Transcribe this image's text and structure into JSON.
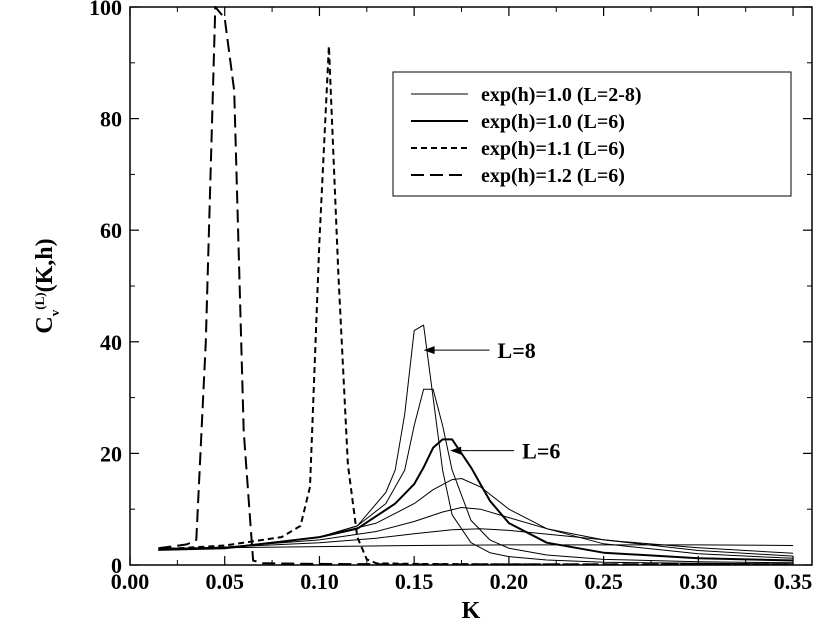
{
  "chart_data": {
    "type": "line",
    "title": "",
    "xlabel": "K",
    "ylabel": {
      "base": "C",
      "sub": "v",
      "sup": "(L)",
      "arg": "(K,h)"
    },
    "xlim": [
      0.0,
      0.36
    ],
    "ylim": [
      0,
      100
    ],
    "xticks": [
      0.0,
      0.05,
      0.1,
      0.15,
      0.2,
      0.25,
      0.3,
      0.35
    ],
    "xtick_labels": [
      "0.00",
      "0.05",
      "0.10",
      "0.15",
      "0.20",
      "0.25",
      "0.30",
      "0.35"
    ],
    "yticks": [
      0,
      20,
      40,
      60,
      80,
      100
    ],
    "ytick_labels": [
      "0",
      "20",
      "40",
      "60",
      "80",
      "100"
    ],
    "grid": false,
    "legend_position": "top-right",
    "legend": [
      {
        "label": "exp(h)=1.0 (L=2-8)",
        "style": "thin"
      },
      {
        "label": "exp(h)=1.0 (L=6)",
        "style": "thick"
      },
      {
        "label": "exp(h)=1.1 (L=6)",
        "style": "short-dash"
      },
      {
        "label": "exp(h)=1.2 (L=6)",
        "style": "long-dash"
      }
    ],
    "series": [
      {
        "style": "thin",
        "x": [
          0.015,
          0.05,
          0.1,
          0.15,
          0.2,
          0.25,
          0.3,
          0.35
        ],
        "y": [
          3.0,
          3.1,
          3.3,
          3.5,
          3.6,
          3.6,
          3.6,
          3.5
        ]
      },
      {
        "style": "thin",
        "x": [
          0.015,
          0.05,
          0.1,
          0.13,
          0.15,
          0.17,
          0.185,
          0.2,
          0.23,
          0.26,
          0.3,
          0.35
        ],
        "y": [
          2.9,
          3.2,
          4.0,
          4.8,
          5.6,
          6.3,
          6.5,
          6.2,
          5.2,
          4.2,
          3.1,
          2.1
        ]
      },
      {
        "style": "thin",
        "x": [
          0.015,
          0.05,
          0.1,
          0.13,
          0.15,
          0.165,
          0.175,
          0.185,
          0.2,
          0.22,
          0.25,
          0.3,
          0.35
        ],
        "y": [
          2.8,
          3.2,
          4.5,
          6.0,
          7.8,
          9.5,
          10.3,
          10.0,
          8.5,
          6.5,
          4.5,
          2.6,
          1.6
        ]
      },
      {
        "style": "thin",
        "x": [
          0.015,
          0.05,
          0.1,
          0.13,
          0.15,
          0.16,
          0.17,
          0.175,
          0.185,
          0.2,
          0.22,
          0.25,
          0.3,
          0.35
        ],
        "y": [
          2.7,
          3.1,
          5.0,
          7.5,
          11.0,
          13.5,
          15.3,
          15.5,
          14.0,
          10.0,
          6.5,
          3.8,
          2.0,
          1.2
        ]
      },
      {
        "style": "thin",
        "x": [
          0.015,
          0.05,
          0.1,
          0.12,
          0.14,
          0.15,
          0.155,
          0.16,
          0.165,
          0.17,
          0.18,
          0.19,
          0.2,
          0.22,
          0.25,
          0.3,
          0.35
        ],
        "y": [
          2.7,
          3.0,
          5.0,
          6.5,
          11.0,
          14.5,
          17.5,
          21.0,
          22.5,
          22.5,
          17.5,
          11.5,
          7.5,
          4.0,
          2.2,
          1.2,
          0.8
        ]
      },
      {
        "style": "thin",
        "x": [
          0.015,
          0.05,
          0.1,
          0.12,
          0.135,
          0.145,
          0.15,
          0.155,
          0.16,
          0.165,
          0.17,
          0.18,
          0.19,
          0.2,
          0.22,
          0.25,
          0.3,
          0.35
        ],
        "y": [
          2.7,
          3.0,
          5.0,
          7.0,
          11.0,
          17.0,
          25.0,
          31.5,
          31.5,
          25.0,
          17.0,
          8.0,
          4.5,
          3.0,
          1.8,
          1.0,
          0.6,
          0.4
        ]
      },
      {
        "style": "thin",
        "x": [
          0.015,
          0.05,
          0.1,
          0.12,
          0.135,
          0.14,
          0.145,
          0.15,
          0.155,
          0.16,
          0.165,
          0.17,
          0.18,
          0.19,
          0.2,
          0.22,
          0.25,
          0.3,
          0.35
        ],
        "y": [
          2.7,
          3.0,
          5.0,
          7.0,
          13.0,
          17.0,
          27.0,
          42.0,
          43.0,
          30.0,
          17.0,
          9.0,
          4.0,
          2.2,
          1.5,
          0.9,
          0.5,
          0.3,
          0.2
        ]
      },
      {
        "style": "thick",
        "x": [
          0.015,
          0.05,
          0.1,
          0.12,
          0.14,
          0.15,
          0.155,
          0.16,
          0.165,
          0.17,
          0.18,
          0.19,
          0.2,
          0.22,
          0.25,
          0.3,
          0.35
        ],
        "y": [
          2.7,
          3.0,
          5.0,
          6.5,
          11.0,
          14.5,
          17.5,
          21.0,
          22.5,
          22.5,
          17.5,
          11.5,
          7.5,
          4.0,
          2.2,
          1.2,
          0.8
        ]
      },
      {
        "style": "short-dash",
        "x": [
          0.015,
          0.05,
          0.08,
          0.09,
          0.095,
          0.1,
          0.105,
          0.11,
          0.115,
          0.12,
          0.125,
          0.13,
          0.15,
          0.2,
          0.25,
          0.3,
          0.35
        ],
        "y": [
          2.8,
          3.5,
          5.0,
          7.0,
          14.0,
          58.0,
          93.0,
          52.0,
          18.0,
          5.0,
          1.0,
          0.3,
          0.2,
          0.1,
          0.1,
          0.1,
          0.1
        ]
      },
      {
        "style": "long-dash",
        "x": [
          0.015,
          0.03,
          0.035,
          0.04,
          0.045,
          0.05,
          0.055,
          0.06,
          0.065,
          0.07,
          0.1,
          0.15,
          0.2,
          0.25,
          0.3,
          0.35
        ],
        "y": [
          3.0,
          3.7,
          4.5,
          40.0,
          100.0,
          98.0,
          85.0,
          24.0,
          0.8,
          0.3,
          0.2,
          0.1,
          0.1,
          0.1,
          0.1,
          0.1
        ]
      }
    ],
    "annotations": [
      {
        "text": "L=8",
        "target_x": 0.155,
        "target_y": 38.5,
        "text_x": 0.194,
        "text_y": 38.5
      },
      {
        "text": "L=6",
        "target_x": 0.169,
        "target_y": 20.5,
        "text_x": 0.207,
        "text_y": 20.5
      }
    ]
  }
}
